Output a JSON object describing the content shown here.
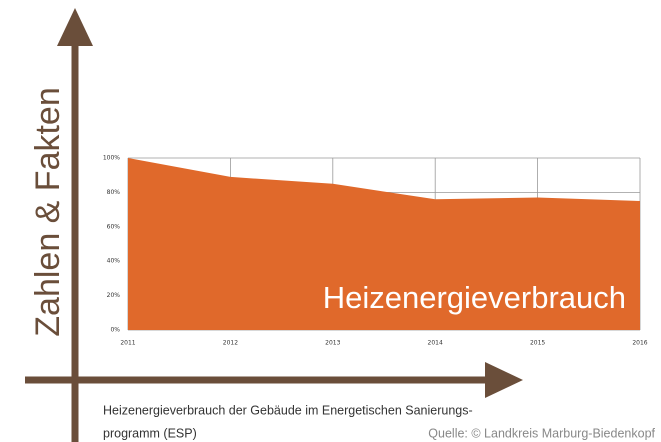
{
  "title": "Zahlen & Fakten",
  "chart_data": {
    "type": "area",
    "annotation": "Heizenergieverbrauch",
    "categories": [
      "2011",
      "2012",
      "2013",
      "2014",
      "2015",
      "2016"
    ],
    "values": [
      100,
      89,
      85,
      76,
      77,
      75
    ],
    "color": "#e0692b",
    "ylim": [
      0,
      100
    ],
    "yticks": [
      {
        "value": 0,
        "label": "0%"
      },
      {
        "value": 20,
        "label": "20%"
      },
      {
        "value": 40,
        "label": "40%"
      },
      {
        "value": 60,
        "label": "60%"
      },
      {
        "value": 80,
        "label": "80%"
      },
      {
        "value": 100,
        "label": "100%"
      }
    ],
    "grid": true
  },
  "caption": [
    "Heizenergieverbrauch der Gebäude im Energetischen Sanierungs-",
    "programm (ESP)"
  ],
  "source": "Quelle: © Landkreis Marburg-Biedenkopf"
}
